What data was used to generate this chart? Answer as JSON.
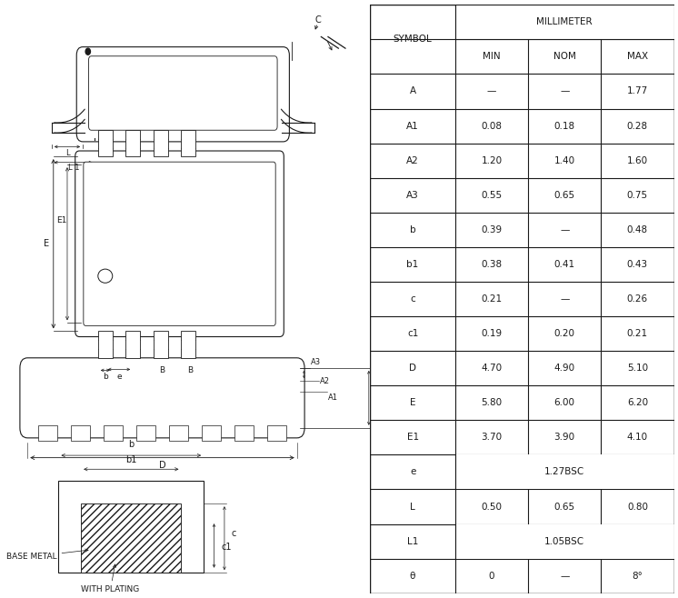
{
  "table_rows": [
    [
      "A",
      "—",
      "—",
      "1.77"
    ],
    [
      "A1",
      "0.08",
      "0.18",
      "0.28"
    ],
    [
      "A2",
      "1.20",
      "1.40",
      "1.60"
    ],
    [
      "A3",
      "0.55",
      "0.65",
      "0.75"
    ],
    [
      "b",
      "0.39",
      "—",
      "0.48"
    ],
    [
      "b1",
      "0.38",
      "0.41",
      "0.43"
    ],
    [
      "c",
      "0.21",
      "—",
      "0.26"
    ],
    [
      "c1",
      "0.19",
      "0.20",
      "0.21"
    ],
    [
      "D",
      "4.70",
      "4.90",
      "5.10"
    ],
    [
      "E",
      "5.80",
      "6.00",
      "6.20"
    ],
    [
      "E1",
      "3.70",
      "3.90",
      "4.10"
    ],
    [
      "e",
      "1.27BSC"
    ],
    [
      "L",
      "0.50",
      "0.65",
      "0.80"
    ],
    [
      "L1",
      "1.05BSC"
    ],
    [
      "θ",
      "0",
      "—",
      "8°"
    ]
  ],
  "bg_color": "#ffffff",
  "line_color": "#1a1a1a",
  "text_color": "#1a1a1a",
  "font_size": 7.5
}
